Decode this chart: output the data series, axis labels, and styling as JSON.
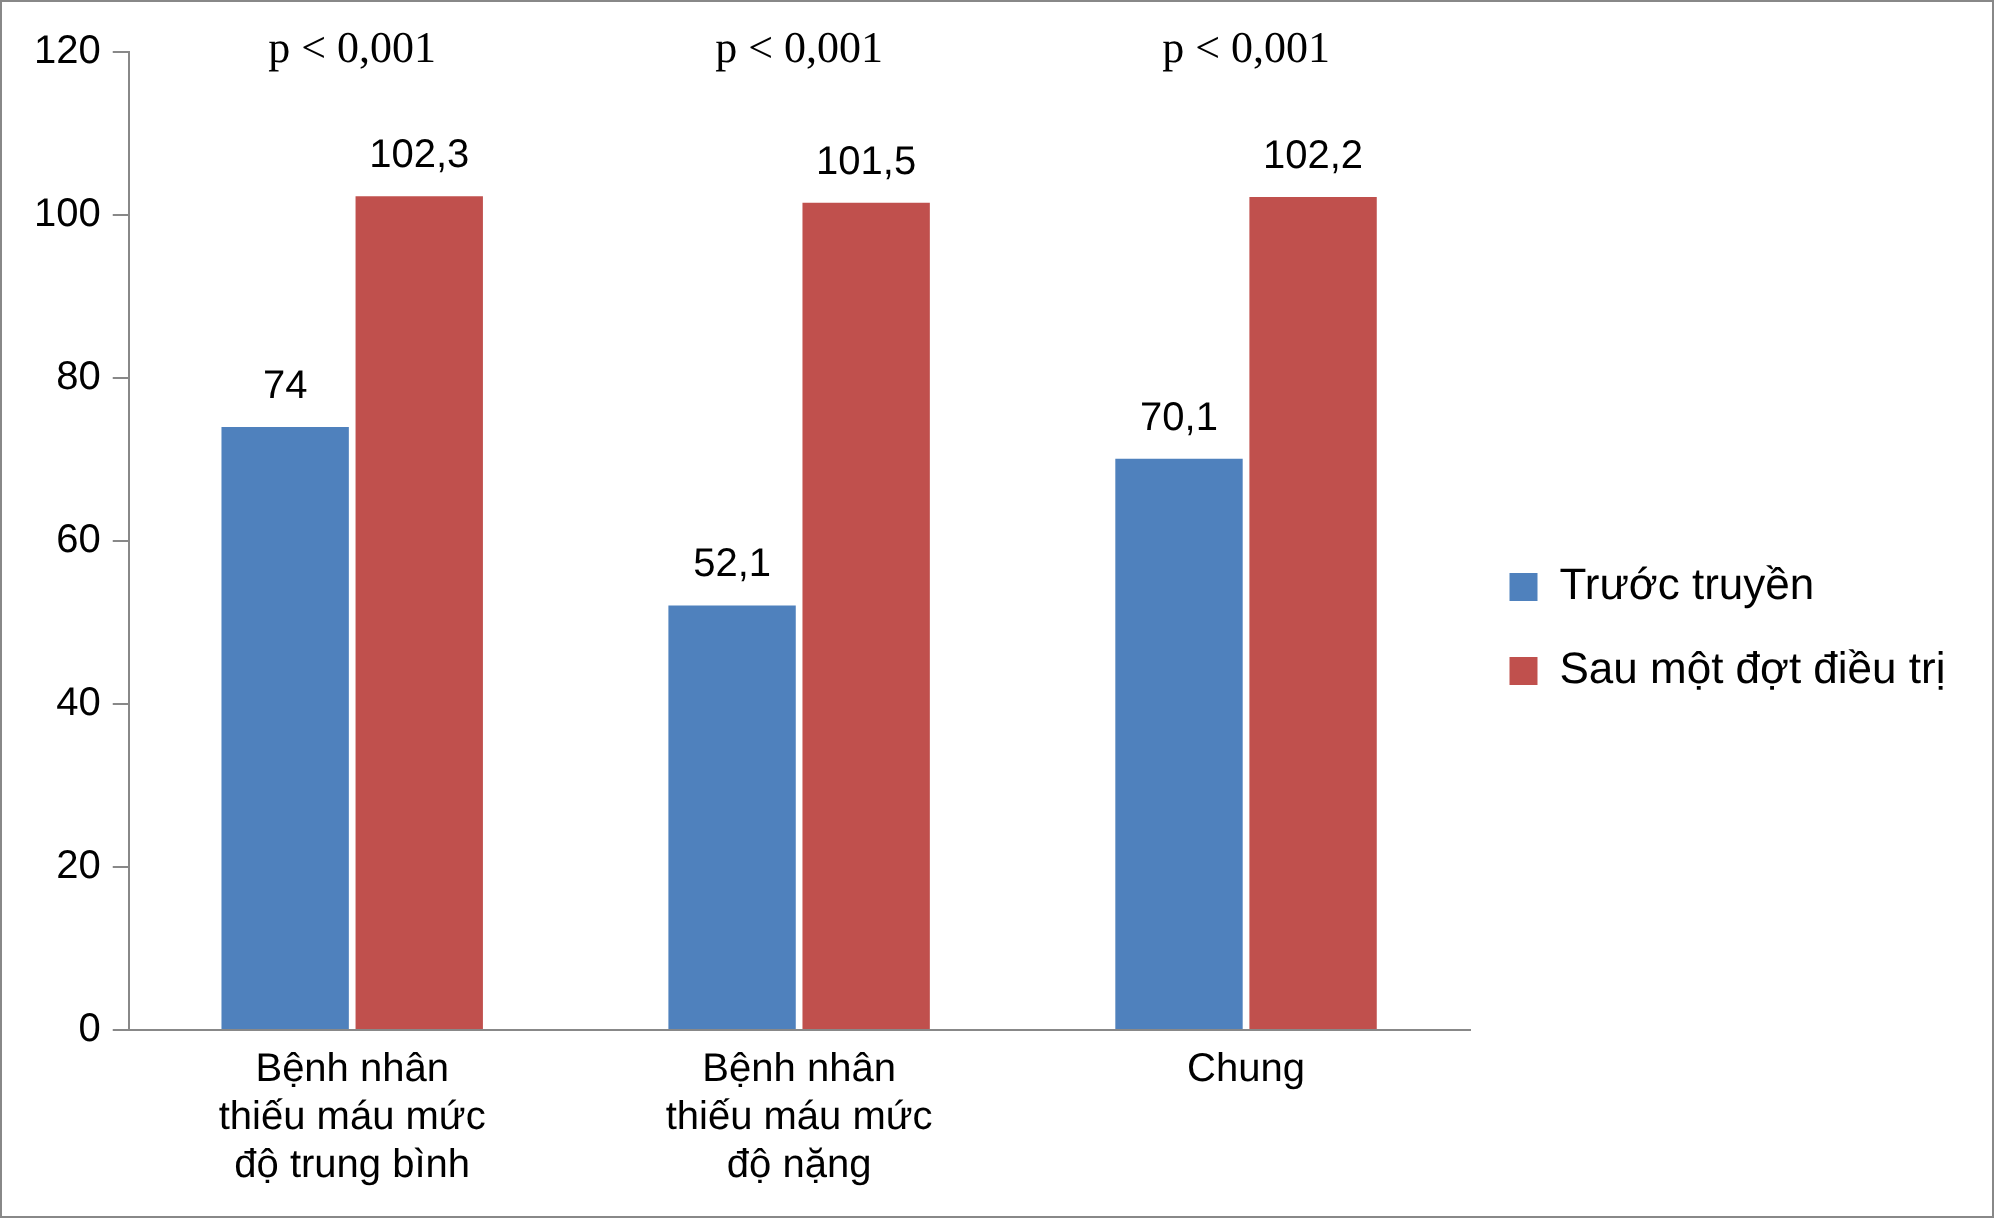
{
  "chart_data": {
    "type": "bar",
    "categories": [
      "Bệnh nhân thiếu máu mức độ trung bình",
      "Bệnh nhân thiếu máu mức độ nặng",
      "Chung"
    ],
    "series": [
      {
        "name": "Trước truyền",
        "color": "#4f81bd",
        "values": [
          74,
          52.1,
          70.1
        ],
        "value_labels": [
          "74",
          "52,1",
          "70,1"
        ]
      },
      {
        "name": "Sau một đợt điều trị",
        "color": "#c0504d",
        "values": [
          102.3,
          101.5,
          102.2
        ],
        "value_labels": [
          "102,3",
          "101,5",
          "102,2"
        ]
      }
    ],
    "ylim": [
      0,
      120
    ],
    "yticks": [
      0,
      20,
      40,
      60,
      80,
      100,
      120
    ],
    "grid": false,
    "legend": "right",
    "annotations": [
      "p < 0,001",
      "p < 0,001",
      "p < 0,001"
    ]
  }
}
